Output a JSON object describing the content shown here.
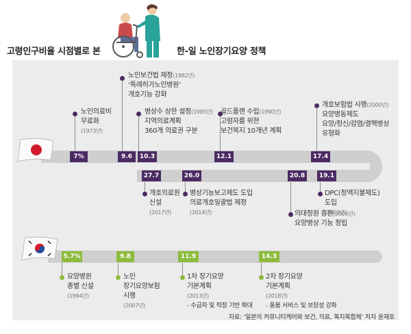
{
  "header": {
    "left_title": "고령인구비율 시점별로 본",
    "right_title": "한-일 노인장기요양 정책"
  },
  "japan": {
    "events": [
      {
        "text": "노인의료비\n무료화",
        "year": "(1973년)"
      },
      {
        "text": "노인보건법 제정",
        "year": "(1982년)",
        "text2": "‘특례허가노인병원’\n개호기능 강화"
      },
      {
        "text": "병상수 상한 설정",
        "year": "(1985년)",
        "text2": "지역의료계획\n360개 의료권 구분"
      },
      {
        "text": "골드플랜 수립",
        "year": "(1990년)",
        "text2": "고령자를 위한\n보건복지 10개년 계획"
      },
      {
        "text": "개호보험법 시행",
        "year": "(2000년)",
        "text2": "요양병동제도\n요양/정신/감염/결핵병상\n유형화"
      },
      {
        "text": "개호의료원\n신설",
        "year": "(2017년)"
      },
      {
        "text": "병상기능보고제도 도입",
        "text2": "의료개호일괄법 제정",
        "year": "(2014년)"
      },
      {
        "text": "의대정원 증원",
        "year": "(2006년)",
        "text2": "요양병상 기능 정립"
      },
      {
        "text": "DPC(정액지불제도)\n도입",
        "year": "(2003년)"
      }
    ],
    "values": [
      "7%",
      "9.6",
      "10.3",
      "12.1",
      "17.4",
      "27.7",
      "26.0",
      "20.8",
      "19.1"
    ]
  },
  "korea": {
    "events": [
      {
        "text": "요양병원\n종별 신설",
        "year": "(1994년)"
      },
      {
        "text": "노인\n장기요양보험\n시행",
        "year": "(2007년)"
      },
      {
        "text": "1차 장기요양\n기본계획",
        "year": "(2013년)",
        "note": "- 수급자 및 적정 기반 확대"
      },
      {
        "text": "2차 장기요양\n기본계획",
        "year": "(2018년)",
        "note": "- 돌봄 서비스 및 보장성 강화"
      }
    ],
    "values": [
      "5.7%",
      "9.8",
      "11.9",
      "14.3"
    ]
  },
  "colors": {
    "japan_accent": "#4b2b63",
    "korea_accent": "#8dbb3d",
    "panel": "#ececec",
    "track": "#cfcfcf"
  },
  "source": "자료: ‘일본의 커뮤니티케어와 보건, 의료, 복지복합체’ 저자 윤재호"
}
